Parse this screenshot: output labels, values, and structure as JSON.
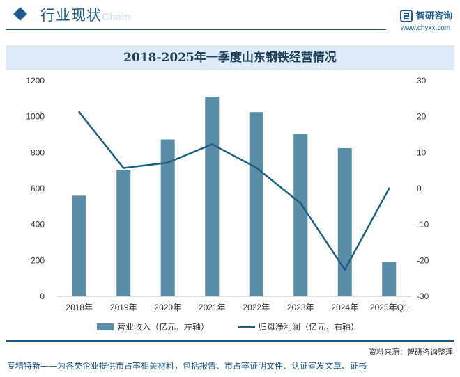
{
  "header": {
    "section_title": "行业现状",
    "section_title_en": "Chain",
    "logo_name": "智研咨询",
    "logo_url": "www.chyxx.com",
    "brand_color": "#1e5a8e"
  },
  "legend": {
    "bar_label": "营业收入（亿元，左轴）",
    "line_label": "归母净利润（亿元，右轴）"
  },
  "source": "资料来源：智研咨询整理",
  "footer": "专精特新——为各类企业提供市占率相关材料，包括报告、市占率证明文件、认证宣发文章、证书",
  "chart_data": {
    "type": "bar",
    "title": "2018-2025年一季度山东钢铁经营情况",
    "categories": [
      "2018年",
      "2019年",
      "2020年",
      "2021年",
      "2022年",
      "2023年",
      "2024年",
      "2025年Q1"
    ],
    "series": [
      {
        "name": "营业收入（亿元，左轴）",
        "type": "bar",
        "axis": "left",
        "color": "#5b8da8",
        "values": [
          560,
          703,
          873,
          1110,
          1025,
          905,
          825,
          193
        ]
      },
      {
        "name": "归母净利润（亿元，右轴）",
        "type": "line",
        "axis": "right",
        "color": "#1a5f80",
        "values": [
          21.2,
          5.7,
          7.2,
          12.3,
          5.8,
          -4.1,
          -22.6,
          0.01
        ]
      }
    ],
    "left_axis": {
      "min": 0,
      "max": 1200,
      "ticks": [
        0,
        200,
        400,
        600,
        800,
        1000,
        1200
      ]
    },
    "right_axis": {
      "min": -30,
      "max": 30,
      "ticks": [
        -30,
        -20,
        -10,
        0,
        10,
        20,
        30
      ]
    },
    "legend_position": "bottom",
    "grid": false
  }
}
